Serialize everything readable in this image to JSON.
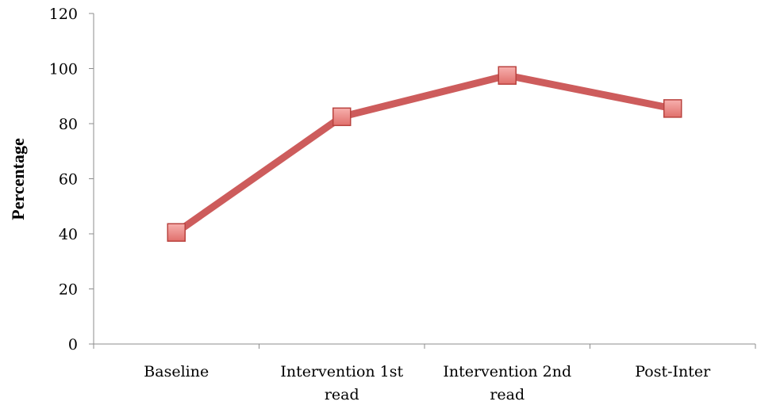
{
  "chart_data": {
    "type": "line",
    "title": "",
    "xlabel": "",
    "ylabel": "Percentage",
    "categories": [
      [
        "Baseline"
      ],
      [
        "Intervention 1st",
        "read"
      ],
      [
        "Intervention 2nd",
        "read"
      ],
      [
        "Post-Inter"
      ]
    ],
    "series": [
      {
        "values": [
          40.5,
          82.5,
          97.5,
          85.5
        ],
        "color": "#cd5c5c",
        "marker": "square"
      }
    ],
    "ylim": [
      0,
      120
    ],
    "yticks": [
      0,
      20,
      40,
      60,
      80,
      100,
      120
    ],
    "grid": false,
    "legend": "none"
  }
}
